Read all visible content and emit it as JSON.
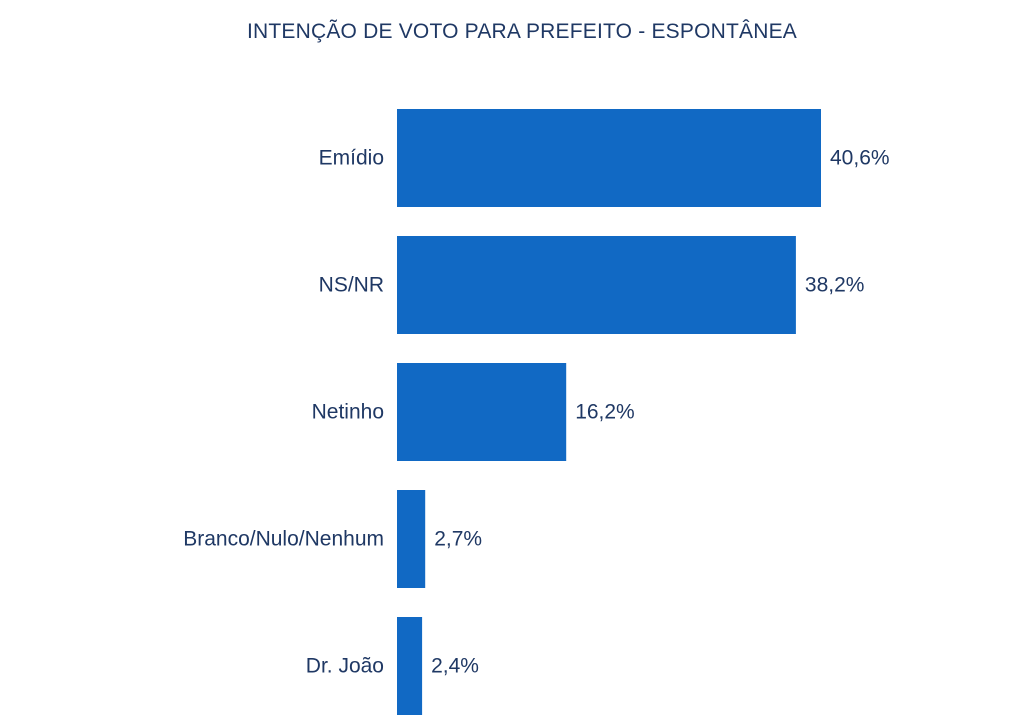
{
  "chart_data": {
    "type": "bar",
    "orientation": "horizontal",
    "title": "INTENÇÃO DE VOTO PARA PREFEITO - ESPONTÂNEA",
    "categories": [
      "Emídio",
      "NS/NR",
      "Netinho",
      "Branco/Nulo/Nenhum",
      "Dr. João"
    ],
    "values": [
      40.6,
      38.2,
      16.2,
      2.7,
      2.4
    ],
    "value_labels": [
      "40,6%",
      "38,2%",
      "16,2%",
      "2,7%",
      "2,4%"
    ],
    "xlabel": "",
    "ylabel": "",
    "grid": false,
    "legend": "none",
    "colors": {
      "bar": "#1169C4",
      "text": "#1f3864"
    }
  }
}
